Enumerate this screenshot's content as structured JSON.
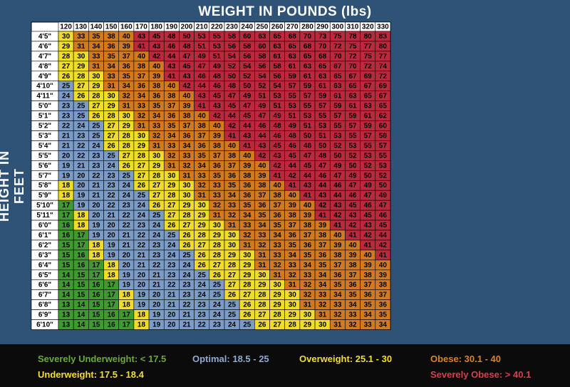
{
  "title": "WEIGHT IN POUNDS (lbs)",
  "ylabel": "HEIGHT IN FEET",
  "colors": {
    "severely_underweight": "#3f9b2f",
    "underweight": "#f0dd2a",
    "optimal": "#7a9cc6",
    "overweight": "#f0dd2a",
    "obese": "#d27a1f",
    "severely_obese": "#bb2a3c",
    "background": "#2f5376",
    "legend_bg": "#0b0b0b"
  },
  "legend": [
    {
      "label": "Severely Underweight: < 17.5",
      "color": "#6aa83a"
    },
    {
      "label": "Optimal: 18.5 - 25",
      "color": "#8eaad3"
    },
    {
      "label": "Overweight: 25.1 - 30",
      "color": "#f2df2a"
    },
    {
      "label": "Obese: 30.1 - 40",
      "color": "#d9822a"
    },
    {
      "label": "Underweight: 17.5 - 18.4",
      "color": "#f2df2a"
    },
    {
      "label": "Severely Obese: > 40.1",
      "color": "#d2424e"
    }
  ],
  "chart_data": {
    "type": "table",
    "title": "WEIGHT IN POUNDS (lbs)",
    "ylabel": "HEIGHT IN FEET",
    "weights": [
      120,
      130,
      140,
      150,
      160,
      170,
      180,
      190,
      200,
      210,
      220,
      230,
      240,
      250,
      260,
      270,
      280,
      290,
      300,
      310,
      320,
      330
    ],
    "heights": [
      "4'5\"",
      "4'6\"",
      "4'7\"",
      "4'8\"",
      "4'9\"",
      "4'10\"",
      "4'11\"",
      "5'0\"",
      "5'1\"",
      "5'2\"",
      "5'3\"",
      "5'4\"",
      "5'5\"",
      "5'6\"",
      "5'7\"",
      "5'8\"",
      "5'9\"",
      "5'10\"",
      "5'11\"",
      "6'0\"",
      "6'1\"",
      "6'2\"",
      "6'3\"",
      "6'4\"",
      "6'5\"",
      "6'6\"",
      "6'7\"",
      "6'8\"",
      "6'9\"",
      "6'10\""
    ],
    "values": [
      [
        30,
        33,
        35,
        38,
        40,
        43,
        45,
        48,
        50,
        53,
        55,
        58,
        60,
        63,
        65,
        68,
        70,
        73,
        75,
        78,
        80,
        83
      ],
      [
        29,
        31,
        34,
        36,
        39,
        41,
        43,
        46,
        48,
        51,
        53,
        56,
        58,
        60,
        63,
        65,
        68,
        70,
        72,
        75,
        77,
        80
      ],
      [
        28,
        30,
        33,
        35,
        37,
        40,
        42,
        44,
        47,
        49,
        51,
        54,
        56,
        58,
        61,
        63,
        65,
        68,
        70,
        72,
        75,
        77
      ],
      [
        27,
        29,
        31,
        34,
        36,
        38,
        40,
        43,
        45,
        47,
        49,
        52,
        54,
        56,
        58,
        61,
        63,
        65,
        67,
        70,
        72,
        74
      ],
      [
        26,
        28,
        30,
        33,
        35,
        37,
        39,
        41,
        43,
        46,
        48,
        50,
        52,
        54,
        56,
        59,
        61,
        63,
        65,
        67,
        69,
        72
      ],
      [
        25,
        27,
        29,
        31,
        34,
        36,
        38,
        40,
        42,
        44,
        46,
        48,
        50,
        52,
        54,
        57,
        59,
        61,
        63,
        65,
        67,
        69
      ],
      [
        24,
        26,
        28,
        30,
        32,
        34,
        36,
        38,
        40,
        43,
        45,
        47,
        49,
        51,
        53,
        55,
        57,
        59,
        61,
        63,
        65,
        67
      ],
      [
        23,
        25,
        27,
        29,
        31,
        33,
        35,
        37,
        39,
        41,
        43,
        45,
        47,
        49,
        51,
        53,
        55,
        57,
        59,
        61,
        63,
        65
      ],
      [
        23,
        25,
        26,
        28,
        30,
        32,
        34,
        36,
        38,
        40,
        42,
        44,
        45,
        47,
        49,
        51,
        53,
        55,
        57,
        59,
        61,
        62
      ],
      [
        22,
        24,
        25,
        27,
        29,
        31,
        33,
        35,
        37,
        38,
        40,
        42,
        44,
        46,
        48,
        49,
        51,
        53,
        55,
        57,
        59,
        60
      ],
      [
        21,
        23,
        25,
        27,
        28,
        30,
        32,
        34,
        36,
        37,
        39,
        41,
        43,
        44,
        46,
        48,
        50,
        51,
        53,
        55,
        57,
        58
      ],
      [
        21,
        22,
        24,
        26,
        28,
        29,
        31,
        33,
        34,
        36,
        38,
        40,
        41,
        43,
        45,
        46,
        48,
        50,
        52,
        53,
        55,
        57
      ],
      [
        20,
        22,
        23,
        25,
        27,
        28,
        30,
        32,
        33,
        35,
        37,
        38,
        40,
        42,
        43,
        45,
        47,
        48,
        50,
        52,
        53,
        55
      ],
      [
        19,
        21,
        23,
        24,
        26,
        27,
        29,
        31,
        32,
        34,
        36,
        37,
        39,
        40,
        42,
        44,
        45,
        47,
        49,
        50,
        52,
        53
      ],
      [
        19,
        20,
        22,
        23,
        25,
        27,
        28,
        30,
        31,
        33,
        35,
        36,
        38,
        39,
        41,
        42,
        44,
        46,
        47,
        49,
        50,
        52
      ],
      [
        18,
        20,
        21,
        23,
        24,
        26,
        27,
        29,
        30,
        32,
        33,
        35,
        36,
        38,
        40,
        41,
        43,
        44,
        46,
        47,
        49,
        50
      ],
      [
        18,
        19,
        21,
        22,
        24,
        25,
        27,
        28,
        30,
        31,
        33,
        34,
        36,
        37,
        38,
        40,
        41,
        43,
        44,
        46,
        47,
        49
      ],
      [
        17,
        19,
        20,
        22,
        23,
        24,
        26,
        27,
        29,
        30,
        32,
        33,
        35,
        36,
        37,
        39,
        40,
        42,
        43,
        45,
        46,
        47
      ],
      [
        17,
        18,
        20,
        21,
        22,
        24,
        25,
        27,
        28,
        29,
        31,
        32,
        34,
        35,
        36,
        38,
        39,
        41,
        42,
        43,
        45,
        46
      ],
      [
        16,
        18,
        19,
        20,
        22,
        23,
        24,
        26,
        27,
        29,
        30,
        31,
        33,
        34,
        35,
        37,
        38,
        39,
        41,
        42,
        43,
        45
      ],
      [
        16,
        17,
        19,
        20,
        21,
        22,
        24,
        25,
        26,
        28,
        29,
        30,
        32,
        33,
        34,
        36,
        37,
        38,
        40,
        41,
        42,
        44
      ],
      [
        15,
        17,
        18,
        19,
        21,
        22,
        23,
        24,
        26,
        27,
        28,
        30,
        31,
        32,
        33,
        35,
        36,
        37,
        39,
        40,
        41,
        42
      ],
      [
        15,
        16,
        18,
        19,
        20,
        21,
        23,
        24,
        25,
        26,
        28,
        29,
        30,
        31,
        33,
        34,
        35,
        36,
        38,
        39,
        40,
        41
      ],
      [
        15,
        16,
        17,
        18,
        20,
        21,
        22,
        23,
        24,
        26,
        27,
        28,
        29,
        31,
        32,
        33,
        34,
        35,
        37,
        38,
        39,
        40
      ],
      [
        14,
        15,
        17,
        18,
        19,
        20,
        21,
        23,
        24,
        25,
        26,
        27,
        29,
        30,
        31,
        32,
        33,
        34,
        36,
        37,
        38,
        39
      ],
      [
        14,
        15,
        16,
        17,
        19,
        20,
        21,
        22,
        23,
        24,
        25,
        27,
        28,
        29,
        30,
        31,
        32,
        34,
        35,
        36,
        37,
        38
      ],
      [
        14,
        15,
        16,
        17,
        18,
        19,
        20,
        21,
        23,
        24,
        25,
        26,
        27,
        28,
        29,
        30,
        32,
        33,
        34,
        35,
        36,
        37
      ],
      [
        13,
        14,
        15,
        17,
        18,
        19,
        20,
        21,
        22,
        23,
        24,
        25,
        26,
        28,
        29,
        30,
        31,
        32,
        33,
        34,
        35,
        36
      ],
      [
        13,
        14,
        15,
        16,
        17,
        18,
        19,
        20,
        21,
        23,
        24,
        25,
        26,
        27,
        28,
        29,
        30,
        31,
        32,
        33,
        34,
        35
      ],
      [
        13,
        14,
        15,
        16,
        17,
        18,
        19,
        20,
        21,
        22,
        23,
        24,
        25,
        26,
        27,
        28,
        29,
        30,
        31,
        32,
        33,
        34
      ]
    ]
  }
}
